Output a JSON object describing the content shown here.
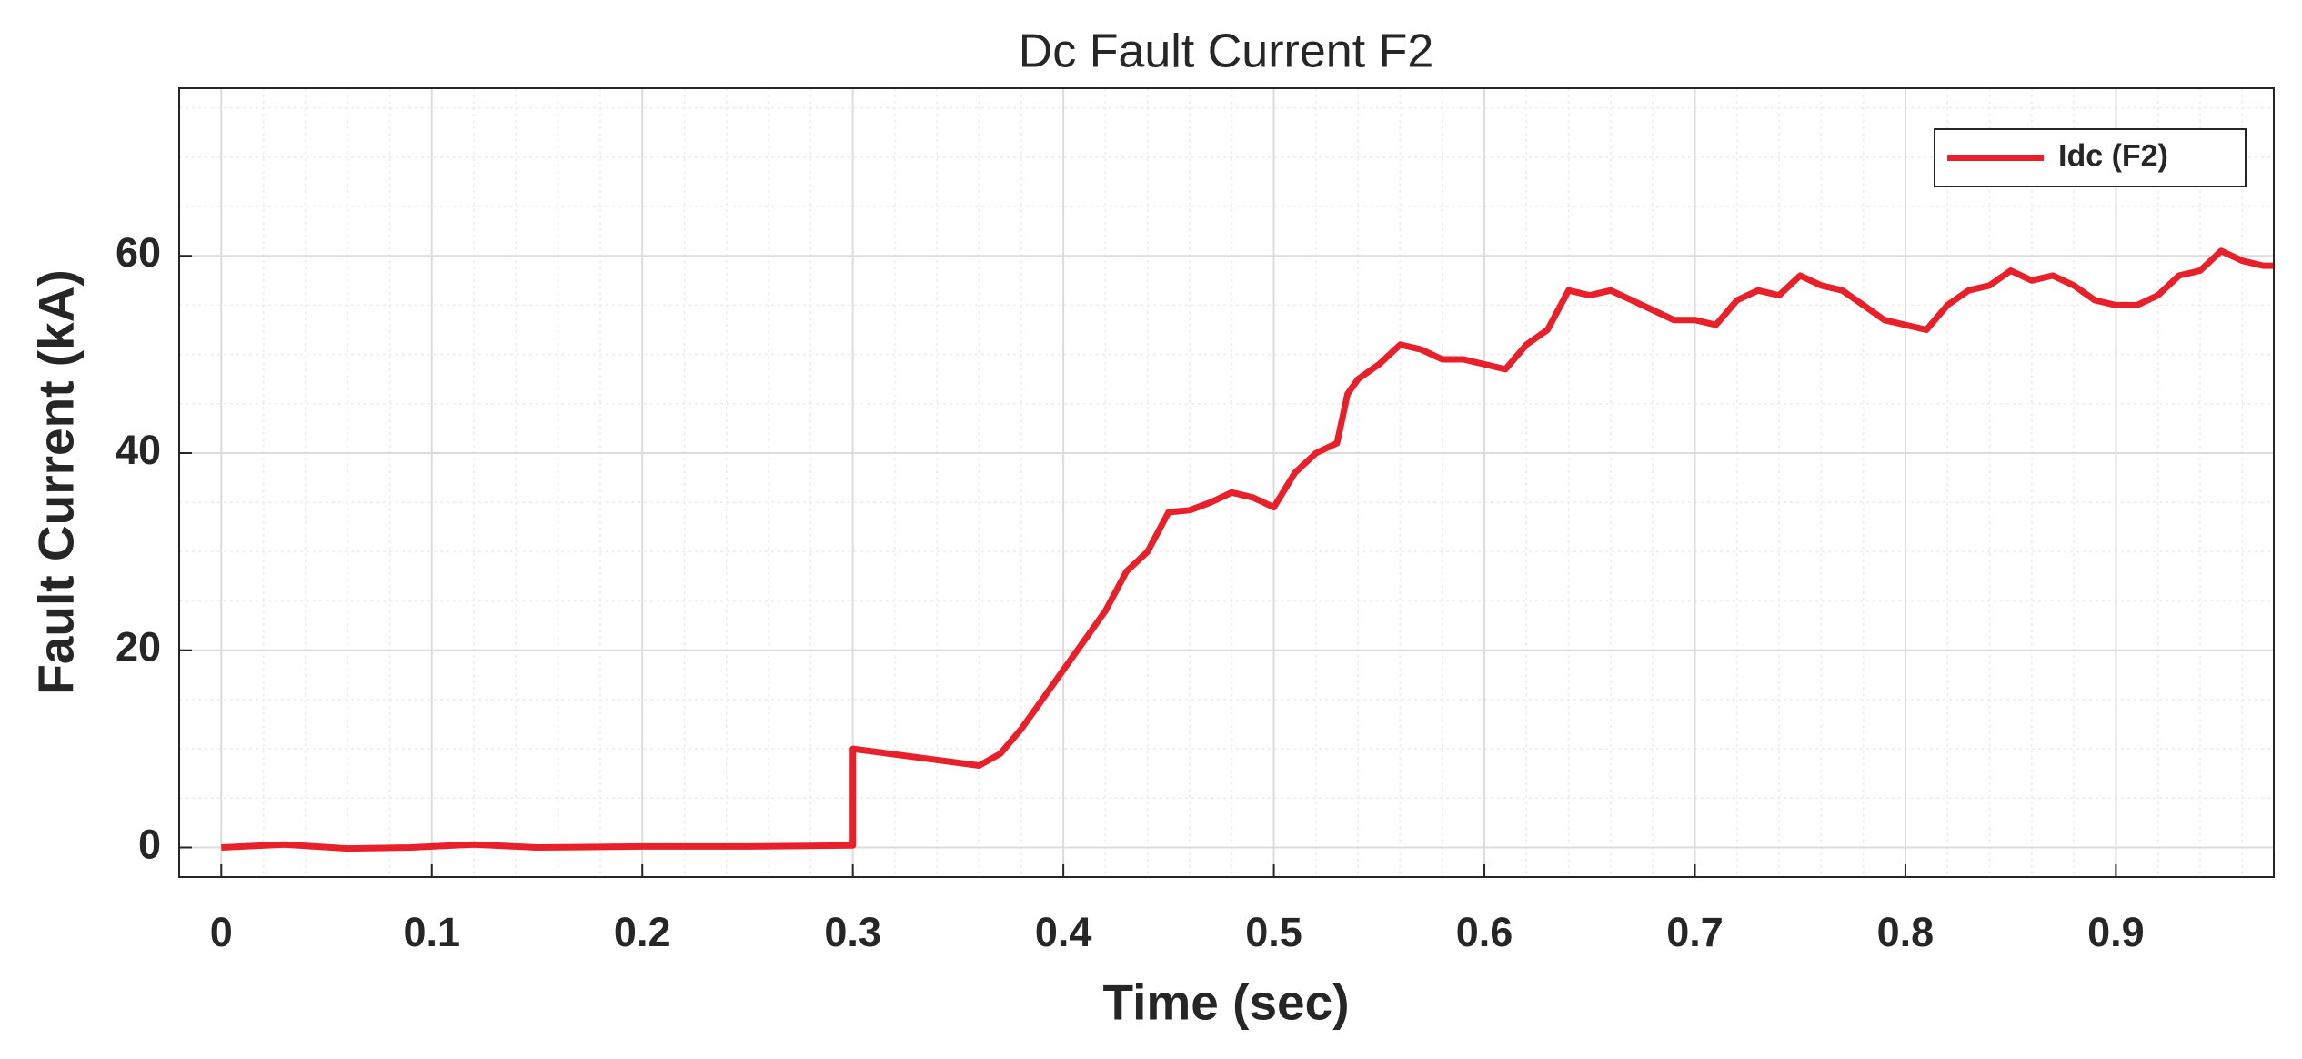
{
  "chart_data": {
    "type": "line",
    "title": "Dc Fault Current F2",
    "xlabel": "Time (sec)",
    "ylabel": "Fault Current (kA)",
    "xlim": [
      -0.02,
      0.975
    ],
    "ylim": [
      -3,
      77
    ],
    "xticks": [
      0,
      0.1,
      0.2,
      0.3,
      0.4,
      0.5,
      0.6,
      0.7,
      0.8,
      0.9
    ],
    "yticks": [
      0,
      20,
      40,
      60
    ],
    "grid": true,
    "legend": "northeast",
    "x": [
      0,
      0.03,
      0.06,
      0.09,
      0.12,
      0.15,
      0.2,
      0.25,
      0.3,
      0.3,
      0.36,
      0.37,
      0.38,
      0.39,
      0.4,
      0.41,
      0.42,
      0.43,
      0.44,
      0.45,
      0.46,
      0.47,
      0.48,
      0.49,
      0.5,
      0.51,
      0.52,
      0.53,
      0.535,
      0.54,
      0.55,
      0.56,
      0.57,
      0.58,
      0.59,
      0.6,
      0.61,
      0.62,
      0.63,
      0.64,
      0.65,
      0.66,
      0.67,
      0.68,
      0.69,
      0.7,
      0.71,
      0.72,
      0.73,
      0.74,
      0.75,
      0.76,
      0.77,
      0.78,
      0.79,
      0.8,
      0.81,
      0.82,
      0.83,
      0.84,
      0.85,
      0.86,
      0.87,
      0.88,
      0.89,
      0.9,
      0.91,
      0.92,
      0.93,
      0.94,
      0.95,
      0.96,
      0.97,
      0.975
    ],
    "series": [
      {
        "name": "Idc (F2)",
        "color": "#e8202a",
        "values": [
          0,
          0.3,
          -0.1,
          0,
          0.3,
          0,
          0.1,
          0.1,
          0.2,
          10,
          8.3,
          9.5,
          12,
          15,
          18,
          21,
          24,
          28,
          30,
          34,
          34.2,
          35,
          36,
          35.5,
          34.5,
          38,
          40,
          41,
          46,
          47.5,
          49,
          51,
          50.5,
          49.5,
          49.5,
          49,
          48.5,
          51,
          52.5,
          56.5,
          56,
          56.5,
          55.5,
          54.5,
          53.5,
          53.5,
          53,
          55.5,
          56.5,
          56,
          58,
          57,
          56.5,
          55,
          53.5,
          53,
          52.5,
          55,
          56.5,
          57,
          58.5,
          57.5,
          58,
          57,
          55.5,
          55,
          55,
          56,
          58,
          58.5,
          60.5,
          59.5,
          59,
          59
        ]
      }
    ]
  }
}
